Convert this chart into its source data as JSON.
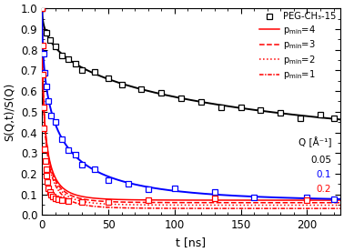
{
  "xlabel": "t [ns]",
  "ylabel": "S(Q,t)/S(Q)",
  "xlim": [
    0,
    225
  ],
  "ylim": [
    0,
    1.0
  ],
  "xticks": [
    0,
    50,
    100,
    150,
    200
  ],
  "yticks": [
    0.0,
    0.1,
    0.2,
    0.3,
    0.4,
    0.5,
    0.6,
    0.7,
    0.8,
    0.9,
    1.0
  ],
  "Q_label": "Q [Å⁻¹]",
  "legend_data_label": "PEG-CH₃-15",
  "background_color": "white",
  "tau_black": 200.0,
  "plateau_black": 0.175,
  "beta_black": 0.45,
  "tau_blue": 12.0,
  "plateau_blue": 0.065,
  "beta_blue": 0.5,
  "tau_red": 2.5,
  "plateau_red_lines": [
    0.072,
    0.06,
    0.048,
    0.032
  ],
  "beta_red": 0.55
}
